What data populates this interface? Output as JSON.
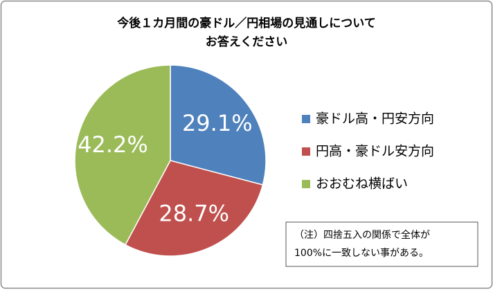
{
  "chart_data": {
    "type": "pie",
    "title": [
      "今後１カ月間の豪ドル／円相場の見通しについて",
      "お答えください"
    ],
    "categories": [
      "豪ドル高・円安方向",
      "円高・豪ドル安方向",
      "おおむね横ばい"
    ],
    "values": [
      29.1,
      28.7,
      42.2
    ],
    "value_labels": [
      "29.1%",
      "28.7%",
      "42.2%"
    ],
    "colors": [
      "#4f81bd",
      "#c0504d",
      "#9bbb59"
    ],
    "legend": "right",
    "annotation": [
      "（注）四捨五入の関係で全体が",
      "100%に一致しない事がある。"
    ]
  }
}
